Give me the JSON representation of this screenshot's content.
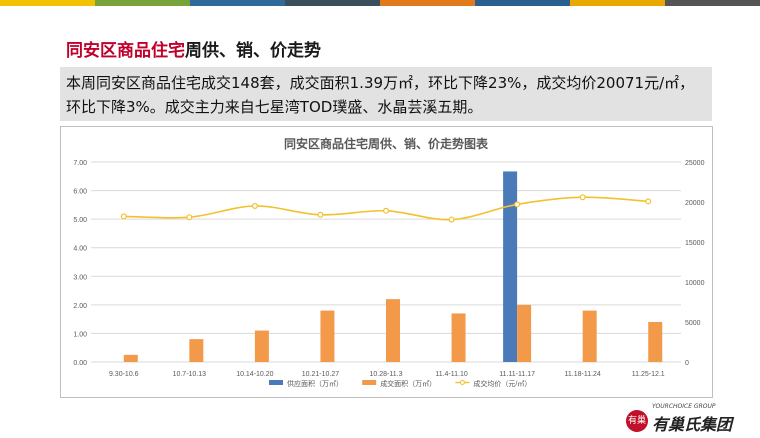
{
  "header": {
    "colors": [
      "#f2c200",
      "#78a33b",
      "#2f6b9a",
      "#3a4e5c",
      "#e07a1a",
      "#2a5f8f",
      "#e9a800",
      "#555555"
    ],
    "title_highlight": "同安区商品住宅",
    "title_rest": "周供、销、价走势"
  },
  "summary": {
    "text": "本周同安区商品住宅成交148套，成交面积1.39万㎡，环比下降23%，成交均价20071元/㎡，环比下降3%。成交主力来自七星湾TOD璞盛、水晶芸溪五期。"
  },
  "chart_data": {
    "type": "bar",
    "title": "同安区商品住宅周供、销、价走势图表",
    "categories": [
      "9.30-10.6",
      "10.7-10.13",
      "10.14-10.20",
      "10.21-10.27",
      "10.28-11.3",
      "11.4-11.10",
      "11.11-11.17",
      "11.18-11.24",
      "11.25-12.1"
    ],
    "series": [
      {
        "name": "供应面积（万㎡）",
        "type": "bar",
        "axis": "left",
        "color": "#4a7ab8",
        "values": [
          0,
          0,
          0,
          0,
          0,
          0,
          6.67,
          0,
          0
        ]
      },
      {
        "name": "成交面积（万㎡）",
        "type": "bar",
        "axis": "left",
        "color": "#f39a4a",
        "values": [
          0.25,
          0.8,
          1.1,
          1.8,
          2.2,
          1.7,
          2.0,
          1.8,
          1.4
        ]
      },
      {
        "name": "成交均价（元/㎡）",
        "type": "line",
        "axis": "right",
        "color": "#f2c12e",
        "values": [
          18200,
          18100,
          19500,
          18400,
          18900,
          17800,
          19700,
          20600,
          20071
        ]
      }
    ],
    "ylim_left": [
      0,
      7
    ],
    "yticks_left": [
      "0.00",
      "1.00",
      "2.00",
      "3.00",
      "4.00",
      "5.00",
      "6.00",
      "7.00"
    ],
    "ylim_right": [
      0,
      25000
    ],
    "yticks_right": [
      "0",
      "5000",
      "10000",
      "15000",
      "20000",
      "25000"
    ],
    "grid": true,
    "legend": "bottom"
  },
  "logo": {
    "badge": "有巢",
    "en": "YOURCHOICE GROUP",
    "cn": "有巢氏集团"
  }
}
